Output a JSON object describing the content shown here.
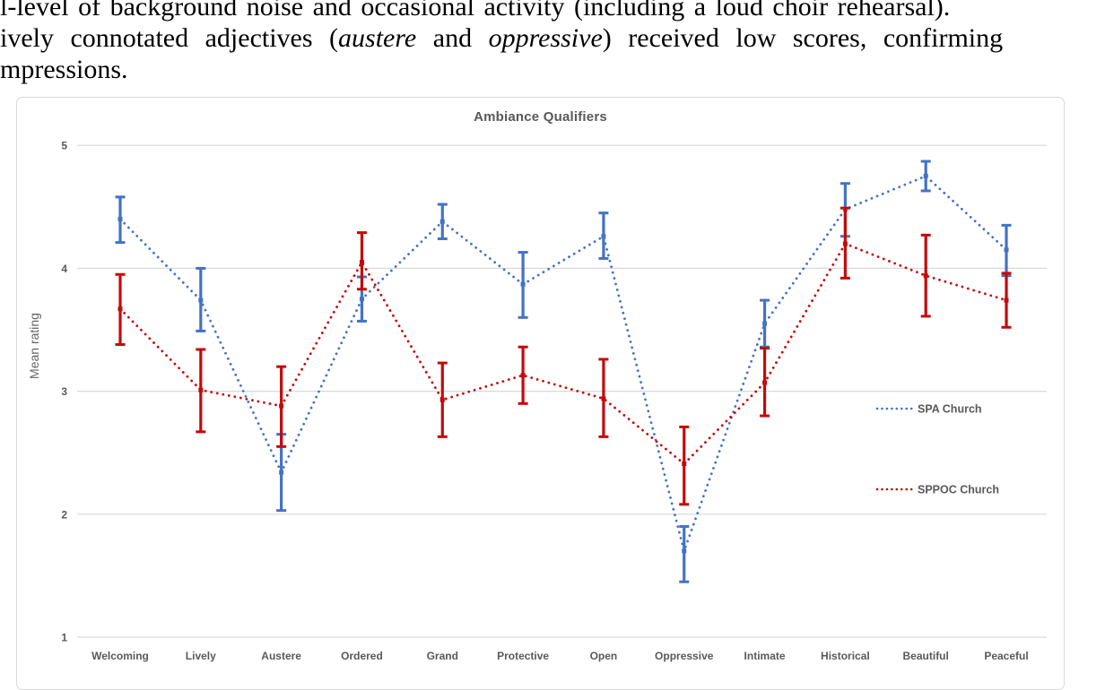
{
  "paper": {
    "line1": "l-level of background noise and occasional activity (including a loud choir rehearsal).",
    "line2_pre": "ively connotated adjectives (",
    "line2_italic1": "austere",
    "line2_mid": " and ",
    "line2_italic2": "oppressive",
    "line2_post": ") received low scores, confirming",
    "line3": "mpressions."
  },
  "chart_data": {
    "type": "line",
    "title": "Ambiance Qualifiers",
    "xlabel": "",
    "ylabel": "Mean rating",
    "ylim": [
      1,
      5
    ],
    "yticks": [
      5,
      4,
      3,
      2,
      1
    ],
    "grid": true,
    "legend_position": "inside-right",
    "line_style": "dotted",
    "error_bars": true,
    "categories": [
      "Welcoming",
      "Lively",
      "Austere",
      "Ordered",
      "Grand",
      "Protective",
      "Open",
      "Oppressive",
      "Intimate",
      "Historical",
      "Beautiful",
      "Peaceful"
    ],
    "series": [
      {
        "name": "SPA Church",
        "color": "#4472C4",
        "values": [
          4.4,
          3.74,
          2.34,
          3.75,
          4.38,
          3.87,
          4.26,
          1.7,
          3.55,
          4.48,
          4.75,
          4.15
        ],
        "err_low": [
          4.21,
          3.49,
          2.03,
          3.57,
          4.24,
          3.6,
          4.08,
          1.45,
          3.36,
          4.26,
          4.63,
          3.94
        ],
        "err_high": [
          4.58,
          4.0,
          2.65,
          3.93,
          4.52,
          4.13,
          4.45,
          1.9,
          3.74,
          4.69,
          4.87,
          4.35
        ]
      },
      {
        "name": "SPPOC Church",
        "color": "#C40A0A",
        "values": [
          3.67,
          3.01,
          2.88,
          4.05,
          2.93,
          3.13,
          2.94,
          2.41,
          3.07,
          4.2,
          3.94,
          3.74
        ],
        "err_low": [
          3.38,
          2.67,
          2.55,
          3.83,
          2.63,
          2.9,
          2.63,
          2.08,
          2.8,
          3.92,
          3.61,
          3.52
        ],
        "err_high": [
          3.95,
          3.34,
          3.2,
          4.29,
          3.23,
          3.36,
          3.26,
          2.71,
          3.35,
          4.49,
          4.27,
          3.96
        ]
      }
    ],
    "gridline_color": "#d9d9d9"
  }
}
